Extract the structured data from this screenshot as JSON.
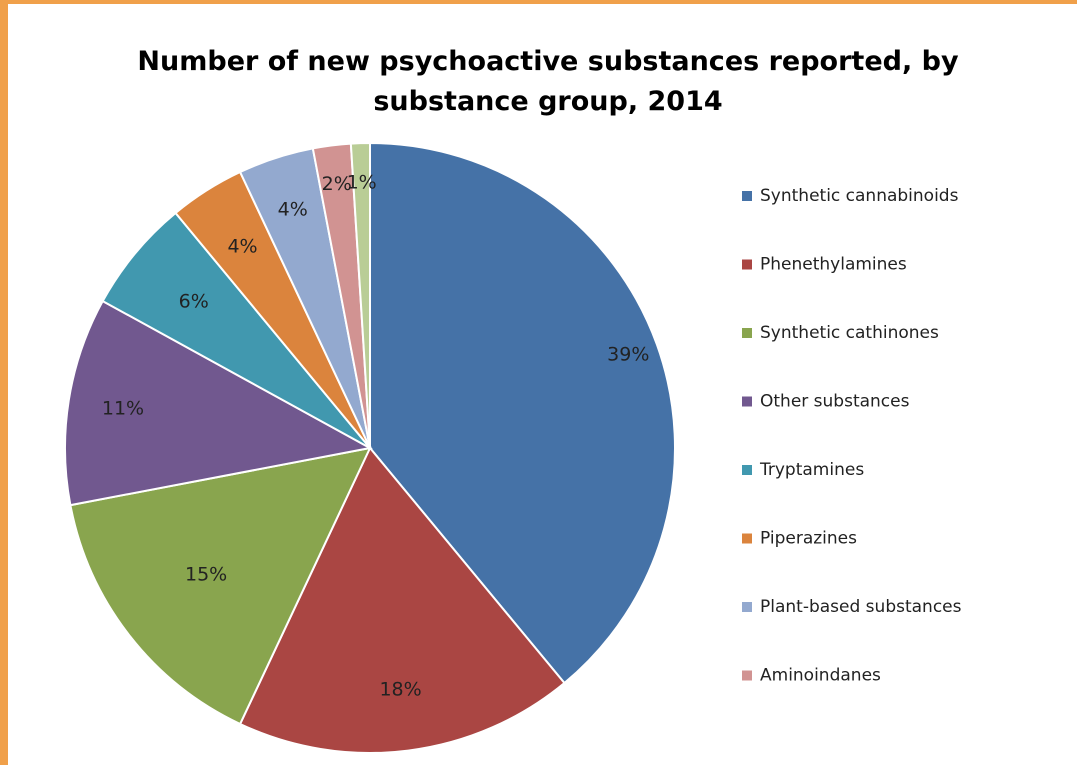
{
  "chart_data": {
    "type": "pie",
    "title": "Number of new psychoactive substances  reported, by substance group, 2014",
    "title_lines": [
      "Number of new psychoactive substances  reported, by",
      "substance group, 2014"
    ],
    "legend_position": "right",
    "slices": [
      {
        "name": "Synthetic cannabinoids",
        "value": 39,
        "label": "39%",
        "color": "#4572a7"
      },
      {
        "name": "Phenethylamines",
        "value": 18,
        "label": "18%",
        "color": "#aa4643"
      },
      {
        "name": "Synthetic cathinones",
        "value": 15,
        "label": "15%",
        "color": "#89a54e"
      },
      {
        "name": "Other substances",
        "value": 11,
        "label": "11%",
        "color": "#71588f"
      },
      {
        "name": "Tryptamines",
        "value": 6,
        "label": "6%",
        "color": "#4198af"
      },
      {
        "name": "Piperazines",
        "value": 4,
        "label": "4%",
        "color": "#db843d"
      },
      {
        "name": "Plant-based substances",
        "value": 4,
        "label": "4%",
        "color": "#93a9cf"
      },
      {
        "name": "Aminoindanes",
        "value": 2,
        "label": "2%",
        "color": "#d19392"
      },
      {
        "name": "",
        "value": 1,
        "label": "1%",
        "color": "#b9cd96"
      }
    ]
  }
}
